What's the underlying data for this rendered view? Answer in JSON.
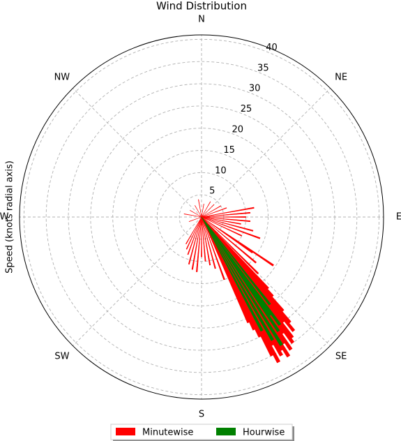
{
  "chart_data": {
    "type": "polar_bar",
    "title": "Wind Distribution",
    "ylabel": "Speed (knots radial axis)",
    "ylim": [
      0,
      41
    ],
    "yticks": [
      5,
      10,
      15,
      20,
      25,
      30,
      35,
      40
    ],
    "xticks": [
      {
        "value": 0,
        "label": "N"
      },
      {
        "value": 45,
        "label": "NE"
      },
      {
        "value": 90,
        "label": "E"
      },
      {
        "value": 135,
        "label": "SE"
      },
      {
        "value": 180,
        "label": "S"
      },
      {
        "value": 225,
        "label": "SW"
      },
      {
        "value": 270,
        "label": "W"
      },
      {
        "value": 315,
        "label": "NW"
      }
    ],
    "grid": true,
    "legend": "lower center",
    "series": [
      {
        "name": "Minutewise",
        "color": "#ff0000",
        "x": [
          10,
          30,
          45,
          60,
          70,
          80,
          85,
          90,
          95,
          100,
          105,
          110,
          115,
          124,
          125,
          130,
          135,
          137,
          138,
          139,
          140,
          141,
          142,
          143,
          144,
          145,
          146,
          147,
          148,
          149,
          150,
          151,
          152,
          153,
          154,
          155,
          156,
          160,
          165,
          170,
          175,
          180,
          185,
          190,
          195,
          200,
          205,
          210,
          250,
          280,
          300,
          330,
          350
        ],
        "values": [
          3,
          4,
          4,
          5,
          6,
          12,
          11,
          10,
          11,
          9,
          12,
          14,
          10,
          19.5,
          14,
          16,
          18,
          22,
          24,
          28,
          31,
          33,
          30,
          34,
          35,
          32,
          36,
          34,
          37,
          35,
          36,
          33,
          37,
          35,
          30,
          28,
          26,
          15,
          12,
          11,
          10,
          9,
          12.4,
          12,
          11,
          9,
          8,
          7,
          3,
          4,
          3,
          3,
          4
        ]
      },
      {
        "name": "Hourwise",
        "color": "#008000",
        "x": [
          142,
          144,
          145,
          146,
          148,
          150,
          152
        ],
        "values": [
          25,
          30,
          27,
          31,
          34,
          32,
          29
        ]
      }
    ]
  }
}
